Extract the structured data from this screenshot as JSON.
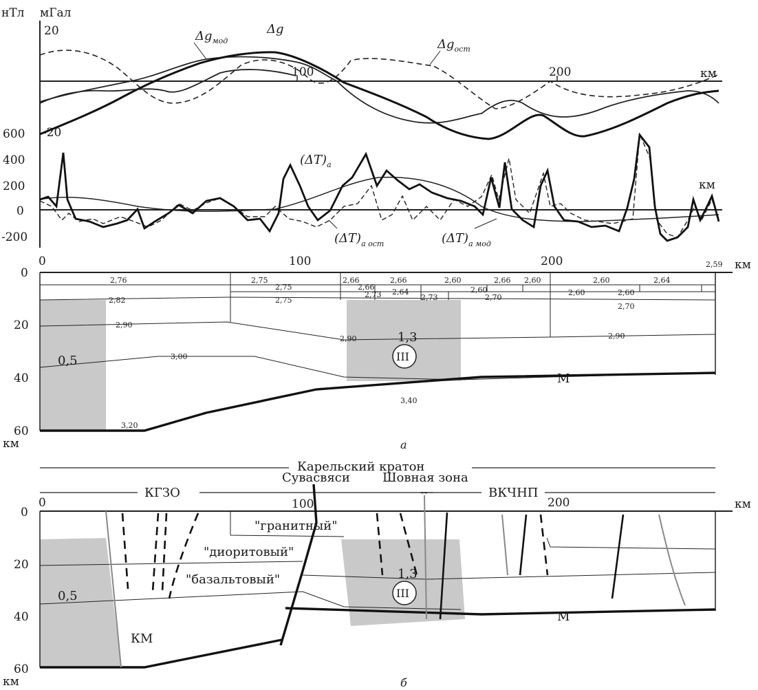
{
  "panel_top": {
    "unit_left": "нТл",
    "unit_right": "мГал",
    "tick_plus20": "20",
    "tick_minus20": "-20",
    "tick_100": "100",
    "tick_200": "200",
    "km": "км",
    "label_dg": "Δg",
    "label_dg_mod_main": "Δg",
    "label_dg_mod_sub": "мод",
    "label_dg_ost_main": "Δg",
    "label_dg_ost_sub": "ост"
  },
  "panel_mag": {
    "y_ticks": [
      "600",
      "400",
      "200",
      "0",
      "-200"
    ],
    "km": "км",
    "label_dt_a_main": "(ΔT)",
    "label_dt_a_sub": "а",
    "label_dt_ost_main": "(ΔT)",
    "label_dt_ost_sub": "а ост",
    "label_dt_mod_main": "(ΔT)",
    "label_dt_mod_sub": "а мод"
  },
  "panel_a": {
    "x_ticks": [
      "0",
      "100",
      "200"
    ],
    "km_right": "км",
    "depth_ticks": [
      "0",
      "20",
      "40",
      "60"
    ],
    "km_bottom": "км",
    "densities": {
      "d276": "2,76",
      "d275a": "2,75",
      "d275b": "2,75",
      "d275c": "2,75",
      "d266a": "2,66",
      "d266b": "2,66",
      "d266c": "2,66",
      "d266d": "2,66",
      "d260a": "2,60",
      "d260b": "2,60",
      "d260c": "2,60",
      "d260d": "2,60",
      "d260e": "2,60",
      "d260f": "2,60",
      "d264a": "2,64",
      "d264b": "2,64",
      "d273a": "2,73",
      "d273b": "2,73",
      "d270a": "2,70",
      "d270b": "2,70",
      "d259": "2,59",
      "d282": "2,82",
      "d290a": "2,90",
      "d290b": "2,90",
      "d290c": "2,90",
      "d300": "3,00",
      "d340": "3,40",
      "d320": "3,20"
    },
    "val_05": "0,5",
    "val_13": "1,3",
    "roman": "III",
    "moho": "М",
    "panel_letter": "а"
  },
  "panel_b": {
    "craton": "Карельский кратон",
    "suvasvyasi": "Сувасвяси",
    "shovnaya": "Шовная зона",
    "kgzo": "КГЗО",
    "vkchnp": "ВКЧНП",
    "x_ticks": [
      "0",
      "100",
      "200"
    ],
    "km_right": "км",
    "depth_ticks": [
      "0",
      "20",
      "40",
      "60"
    ],
    "km_bottom": "км",
    "granite": "\"гранитный\"",
    "diorite": "\"диоритовый\"",
    "basalt": "\"базальтовый\"",
    "val_05": "0,5",
    "val_13": "1,3",
    "roman": "III",
    "km_zone": "КМ",
    "moho": "М",
    "panel_letter": "б"
  }
}
